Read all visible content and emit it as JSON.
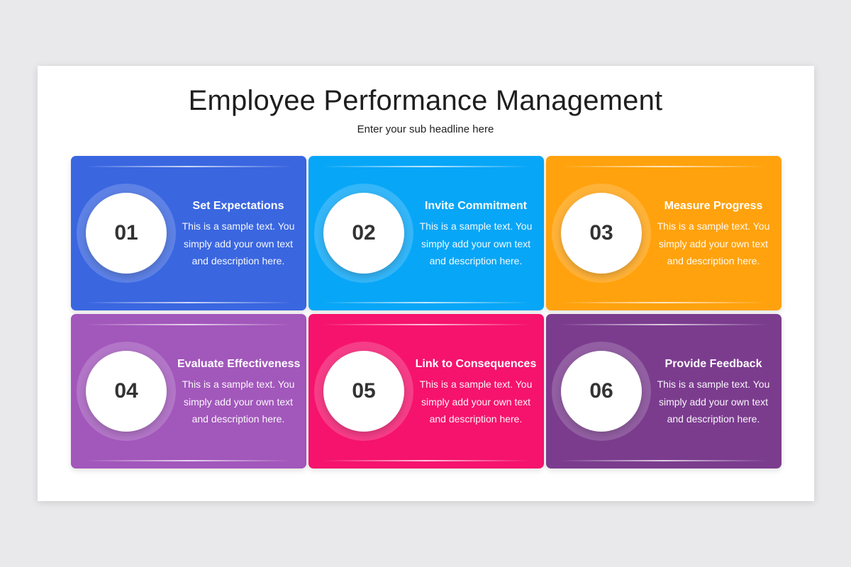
{
  "slide": {
    "title": "Employee Performance Management",
    "subtitle": "Enter your sub headline here"
  },
  "cards": [
    {
      "number": "01",
      "heading": "Set Expectations",
      "body": "This is a sample text. You simply add your own text and description here.",
      "color": "#3a66e0"
    },
    {
      "number": "02",
      "heading": "Invite Commitment",
      "body": "This is a sample text. You simply add your own text and description here.",
      "color": "#08a6f7"
    },
    {
      "number": "03",
      "heading": "Measure Progress",
      "body": "This is a sample text. You simply add your own text and description here.",
      "color": "#ffa20d"
    },
    {
      "number": "04",
      "heading": "Evaluate Effectiveness",
      "body": "This is a sample text. You simply add your own text and description here.",
      "color": "#a257bb"
    },
    {
      "number": "05",
      "heading": "Link to Consequences",
      "body": "This is a sample text. You simply add your own text and description here.",
      "color": "#f5136d"
    },
    {
      "number": "06",
      "heading": "Provide Feedback",
      "body": "This is a sample text. You simply add your own text and description here.",
      "color": "#7b3c8e"
    }
  ]
}
